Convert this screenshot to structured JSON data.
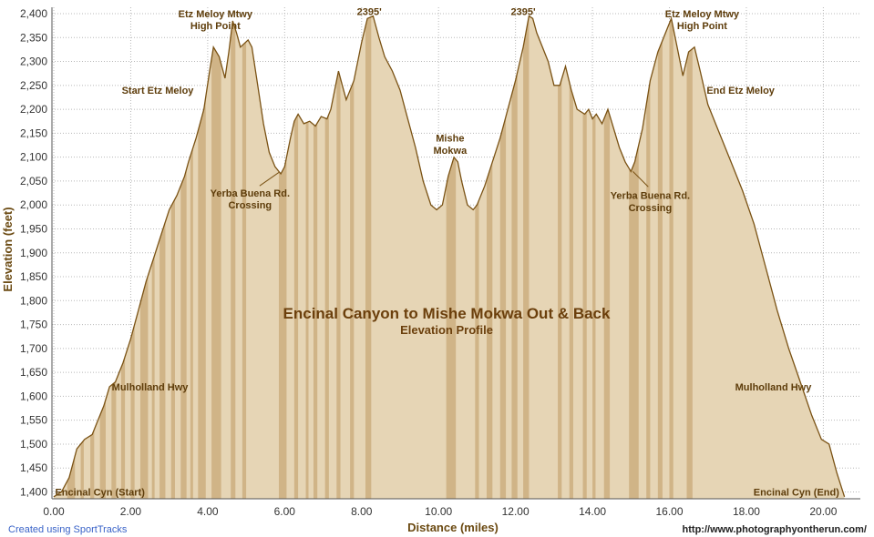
{
  "chart_data": {
    "type": "area",
    "title": "Encinal Canyon to Mishe Mokwa Out & Back",
    "subtitle": "Elevation Profile",
    "xlabel": "Distance (miles)",
    "ylabel": "Elevation (feet)",
    "xlim": [
      0,
      20.8
    ],
    "ylim": [
      1380,
      2410
    ],
    "x_ticks": [
      "0.00",
      "2.00",
      "4.00",
      "6.00",
      "8.00",
      "10.00",
      "12.00",
      "14.00",
      "16.00",
      "18.00",
      "20.00"
    ],
    "y_ticks": [
      "1,400",
      "1,450",
      "1,500",
      "1,550",
      "1,600",
      "1,650",
      "1,700",
      "1,750",
      "1,800",
      "1,850",
      "1,900",
      "1,950",
      "2,000",
      "2,050",
      "2,100",
      "2,150",
      "2,200",
      "2,250",
      "2,300",
      "2,350",
      "2,400"
    ],
    "grid": true,
    "series": [
      {
        "points": [
          [
            0,
            1390
          ],
          [
            0.2,
            1400
          ],
          [
            0.4,
            1430
          ],
          [
            0.6,
            1490
          ],
          [
            0.8,
            1510
          ],
          [
            1.0,
            1520
          ],
          [
            1.1,
            1540
          ],
          [
            1.3,
            1580
          ],
          [
            1.45,
            1620
          ],
          [
            1.6,
            1630
          ],
          [
            1.8,
            1670
          ],
          [
            2.0,
            1720
          ],
          [
            2.2,
            1780
          ],
          [
            2.4,
            1840
          ],
          [
            2.6,
            1890
          ],
          [
            2.8,
            1940
          ],
          [
            3.0,
            1990
          ],
          [
            3.2,
            2020
          ],
          [
            3.4,
            2060
          ],
          [
            3.5,
            2090
          ],
          [
            3.7,
            2140
          ],
          [
            3.9,
            2200
          ],
          [
            4.05,
            2280
          ],
          [
            4.15,
            2330
          ],
          [
            4.3,
            2310
          ],
          [
            4.45,
            2265
          ],
          [
            4.55,
            2320
          ],
          [
            4.65,
            2385
          ],
          [
            4.75,
            2360
          ],
          [
            4.85,
            2330
          ],
          [
            5.05,
            2345
          ],
          [
            5.15,
            2330
          ],
          [
            5.3,
            2250
          ],
          [
            5.45,
            2170
          ],
          [
            5.6,
            2110
          ],
          [
            5.75,
            2080
          ],
          [
            5.9,
            2065
          ],
          [
            6.0,
            2080
          ],
          [
            6.15,
            2140
          ],
          [
            6.25,
            2175
          ],
          [
            6.35,
            2190
          ],
          [
            6.5,
            2170
          ],
          [
            6.65,
            2175
          ],
          [
            6.8,
            2165
          ],
          [
            6.95,
            2185
          ],
          [
            7.1,
            2180
          ],
          [
            7.2,
            2200
          ],
          [
            7.3,
            2240
          ],
          [
            7.4,
            2280
          ],
          [
            7.5,
            2250
          ],
          [
            7.6,
            2220
          ],
          [
            7.8,
            2260
          ],
          [
            8.0,
            2340
          ],
          [
            8.15,
            2390
          ],
          [
            8.3,
            2395
          ],
          [
            8.45,
            2350
          ],
          [
            8.6,
            2310
          ],
          [
            8.8,
            2280
          ],
          [
            9.0,
            2240
          ],
          [
            9.2,
            2180
          ],
          [
            9.4,
            2120
          ],
          [
            9.6,
            2050
          ],
          [
            9.8,
            2000
          ],
          [
            9.95,
            1990
          ],
          [
            10.1,
            2000
          ],
          [
            10.25,
            2060
          ],
          [
            10.4,
            2100
          ],
          [
            10.5,
            2090
          ],
          [
            10.6,
            2050
          ],
          [
            10.75,
            2000
          ],
          [
            10.9,
            1990
          ],
          [
            11.0,
            2000
          ],
          [
            11.2,
            2040
          ],
          [
            11.4,
            2090
          ],
          [
            11.6,
            2140
          ],
          [
            11.8,
            2200
          ],
          [
            12.0,
            2260
          ],
          [
            12.2,
            2330
          ],
          [
            12.35,
            2395
          ],
          [
            12.45,
            2390
          ],
          [
            12.55,
            2360
          ],
          [
            12.7,
            2330
          ],
          [
            12.85,
            2300
          ],
          [
            13.0,
            2250
          ],
          [
            13.15,
            2250
          ],
          [
            13.3,
            2290
          ],
          [
            13.45,
            2240
          ],
          [
            13.6,
            2200
          ],
          [
            13.8,
            2190
          ],
          [
            13.9,
            2200
          ],
          [
            14.0,
            2180
          ],
          [
            14.1,
            2190
          ],
          [
            14.25,
            2170
          ],
          [
            14.4,
            2200
          ],
          [
            14.55,
            2160
          ],
          [
            14.7,
            2120
          ],
          [
            14.85,
            2090
          ],
          [
            15.0,
            2070
          ],
          [
            15.1,
            2090
          ],
          [
            15.3,
            2160
          ],
          [
            15.5,
            2260
          ],
          [
            15.7,
            2320
          ],
          [
            15.85,
            2350
          ],
          [
            15.95,
            2370
          ],
          [
            16.05,
            2390
          ],
          [
            16.2,
            2330
          ],
          [
            16.35,
            2270
          ],
          [
            16.5,
            2320
          ],
          [
            16.65,
            2330
          ],
          [
            16.8,
            2280
          ],
          [
            17.0,
            2210
          ],
          [
            17.3,
            2150
          ],
          [
            17.6,
            2090
          ],
          [
            17.9,
            2030
          ],
          [
            18.2,
            1960
          ],
          [
            18.5,
            1870
          ],
          [
            18.8,
            1780
          ],
          [
            19.1,
            1700
          ],
          [
            19.4,
            1630
          ],
          [
            19.7,
            1560
          ],
          [
            19.95,
            1510
          ],
          [
            20.15,
            1500
          ],
          [
            20.35,
            1440
          ],
          [
            20.55,
            1390
          ]
        ]
      }
    ],
    "annotations": [
      {
        "text": "Etz Meloy Mtwy",
        "x": 4.2,
        "y": 2400
      },
      {
        "text": "High Point",
        "x": 4.2,
        "y": 2375
      },
      {
        "text": "Start Etz Meloy",
        "x": 2.7,
        "y": 2240
      },
      {
        "text": "Yerba Buena Rd.",
        "x": 5.1,
        "y": 2025
      },
      {
        "text": "Crossing",
        "x": 5.1,
        "y": 2000
      },
      {
        "text": "2395'",
        "x": 8.2,
        "y": 2405
      },
      {
        "text": "Mishe",
        "x": 10.3,
        "y": 2140
      },
      {
        "text": "Mokwa",
        "x": 10.3,
        "y": 2115
      },
      {
        "text": "2395'",
        "x": 12.2,
        "y": 2405
      },
      {
        "text": "Yerba Buena Rd.",
        "x": 15.5,
        "y": 2020
      },
      {
        "text": "Crossing",
        "x": 15.5,
        "y": 1995
      },
      {
        "text": "Etz Meloy Mtwy",
        "x": 16.85,
        "y": 2400
      },
      {
        "text": "High Point",
        "x": 16.85,
        "y": 2375
      },
      {
        "text": "End Etz Meloy",
        "x": 17.85,
        "y": 2240
      },
      {
        "text": "Mulholland Hwy",
        "x": 2.5,
        "y": 1620
      },
      {
        "text": "Mulholland Hwy",
        "x": 18.7,
        "y": 1620
      },
      {
        "text": "Encinal Cyn (Start)",
        "x": 1.2,
        "y": 1400
      },
      {
        "text": "Encinal Cyn (End)",
        "x": 19.3,
        "y": 1400
      }
    ],
    "colors": {
      "fill_light": "#e6d5b5",
      "fill_band": "#c8a878",
      "outline": "#7a5214",
      "grid": "#b8b8b8",
      "axis_title": "#6b4a12"
    }
  },
  "credits": {
    "left": "Created using SportTracks",
    "right": "http://www.photographyontherun.com/"
  }
}
